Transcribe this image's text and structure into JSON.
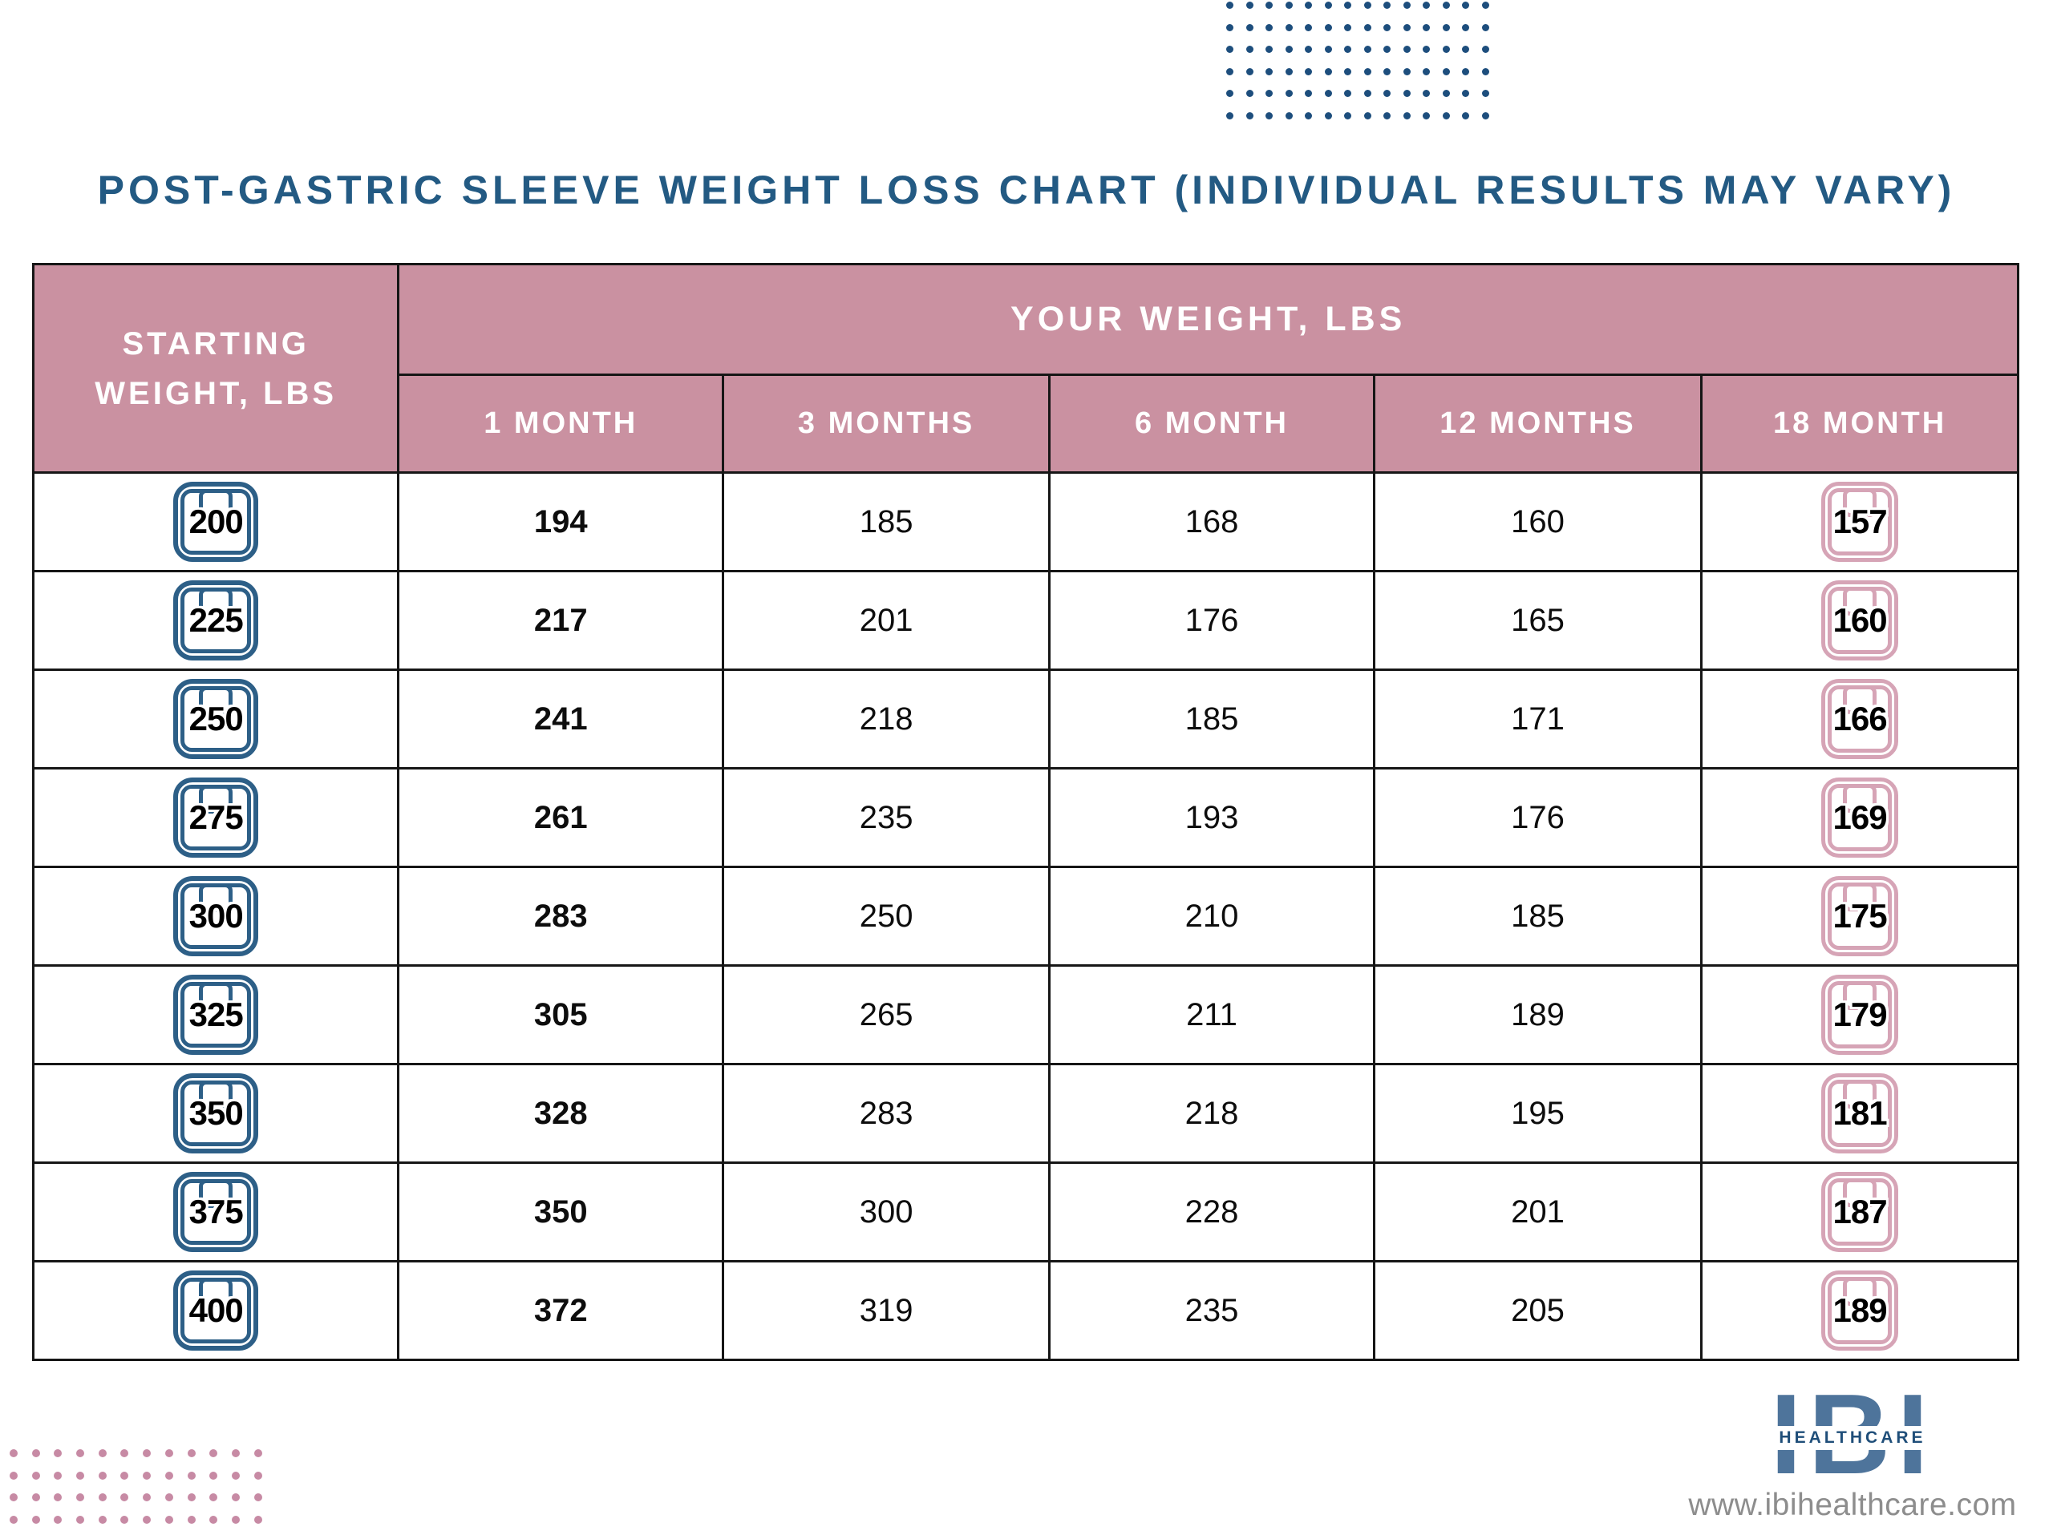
{
  "title": "POST-GASTRIC SLEEVE WEIGHT LOSS CHART (INDIVIDUAL RESULTS MAY VARY)",
  "table": {
    "corner_header": "STARTING WEIGHT, LBS",
    "group_header": "YOUR WEIGHT, LBS",
    "month_headers": [
      "1 MONTH",
      "3 MONTHS",
      "6 MONTH",
      "12 MONTHS",
      "18 MONTH"
    ]
  },
  "chart_data": {
    "type": "table",
    "title": "POST-GASTRIC SLEEVE WEIGHT LOSS CHART (INDIVIDUAL RESULTS MAY VARY)",
    "columns": [
      "STARTING WEIGHT, LBS",
      "1 MONTH",
      "3 MONTHS",
      "6 MONTH",
      "12 MONTHS",
      "18 MONTH"
    ],
    "group_header": "YOUR WEIGHT, LBS",
    "rows": [
      [
        200,
        194,
        185,
        168,
        160,
        157
      ],
      [
        225,
        217,
        201,
        176,
        165,
        160
      ],
      [
        250,
        241,
        218,
        185,
        171,
        166
      ],
      [
        275,
        261,
        235,
        193,
        176,
        169
      ],
      [
        300,
        283,
        250,
        210,
        185,
        175
      ],
      [
        325,
        305,
        265,
        211,
        189,
        179
      ],
      [
        350,
        328,
        283,
        218,
        195,
        181
      ],
      [
        375,
        350,
        300,
        228,
        201,
        187
      ],
      [
        400,
        372,
        319,
        235,
        205,
        189
      ]
    ]
  },
  "icons": {
    "start_column": "scale-icon",
    "end_column": "scale-icon"
  },
  "footer": {
    "logo_main": "IBI",
    "logo_sub": "HEALTHCARE",
    "website": "www.ibihealthcare.com"
  },
  "decorations": {
    "top_dot_grid": {
      "rows": 6,
      "cols": 14
    },
    "bottom_dot_grid": {
      "rows": 4,
      "cols": 12
    }
  },
  "colors": {
    "title_blue": "#235a83",
    "header_pink": "#ca91a1",
    "icon_blue": "#2d5f87",
    "icon_pink": "#d6a4b6",
    "dot_blue": "#1d4e7d",
    "dot_pink": "#c78aa4",
    "table_border": "#161616",
    "logo_steel_blue": "#4e749b",
    "logo_navy": "#1f4e79",
    "url_gray": "#8d8d8d"
  }
}
